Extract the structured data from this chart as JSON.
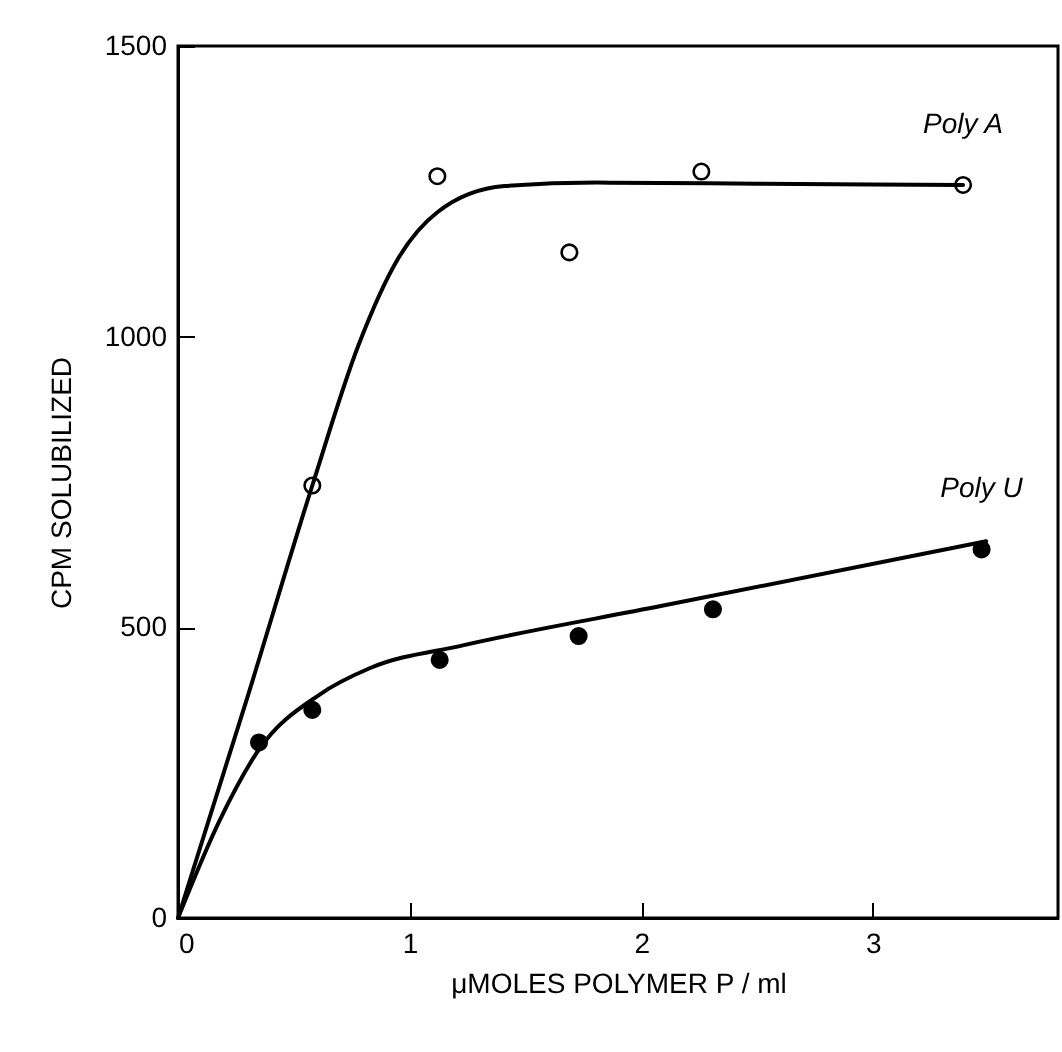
{
  "chart_data": {
    "type": "scatter",
    "xlabel": "μMOLES POLYMER P / ml",
    "ylabel": "CPM SOLUBILIZED",
    "xlim": [
      0,
      3.8
    ],
    "ylim": [
      0,
      1500
    ],
    "xticks": [
      0,
      1,
      2,
      3
    ],
    "yticks": [
      0,
      500,
      1000,
      1500
    ],
    "grid": false,
    "series": [
      {
        "name": "Poly A",
        "color": "#ffffff",
        "marker": "circle",
        "x": [
          0.58,
          1.12,
          1.69,
          2.26,
          3.39
        ],
        "values": [
          744,
          1276,
          1145,
          1284,
          1261
        ]
      },
      {
        "type": "line",
        "color": "#000000",
        "x": [
          0,
          0.3,
          0.58,
          0.78,
          0.95,
          1.12,
          1.41,
          1.81,
          2.5,
          3.39
        ],
        "values": [
          0,
          380,
          744,
          986,
          1134,
          1214,
          1259,
          1265,
          1263,
          1261
        ]
      },
      {
        "name": "Poly U",
        "type": "scatter",
        "color": "#000000",
        "marker": "circle",
        "x": [
          0.35,
          0.58,
          1.13,
          1.73,
          2.31,
          3.47
        ],
        "values": [
          302,
          358,
          444,
          485,
          531,
          634
        ]
      },
      {
        "type": "line",
        "color": "#000000",
        "x": [
          0,
          0.18,
          0.35,
          0.61,
          0.83,
          1.23,
          2.09,
          3.49
        ],
        "values": [
          0,
          168,
          290,
          384,
          430,
          469,
          537,
          648
        ]
      }
    ]
  }
}
